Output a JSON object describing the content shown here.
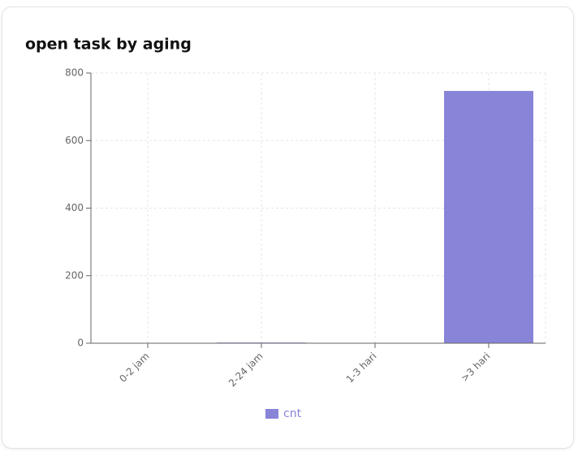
{
  "chart_data": {
    "type": "bar",
    "title": "open task by aging",
    "categories": [
      "0-2 jam",
      "2-24 jam",
      "1-3 hari",
      ">3 hari"
    ],
    "series": [
      {
        "name": "cnt",
        "color": "#8884d8",
        "values": [
          0,
          2,
          0,
          747
        ]
      }
    ],
    "ylim": [
      0,
      800
    ],
    "yticks": [
      0,
      200,
      400,
      600,
      800
    ],
    "grid": true,
    "legend": "bottom"
  }
}
